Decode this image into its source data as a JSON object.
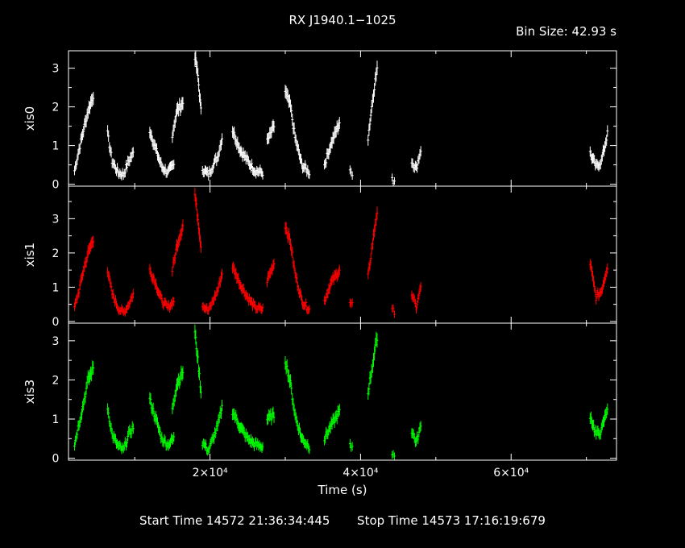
{
  "title": "RX J1940.1−1025",
  "bin_size_label": "Bin Size: 42.93 s",
  "xlabel": "Time (s)",
  "footer": {
    "start_label": "Start Time 14572 21:36:34:445",
    "stop_label": "Stop Time 14573 17:16:19:679"
  },
  "colors": {
    "xis0": "#ffffff",
    "xis1": "#ff0000",
    "xis3": "#00ff00",
    "axes": "#ffffff",
    "background": "#000000"
  },
  "chart_data": {
    "type": "scatter",
    "xlabel": "Time (s)",
    "xlim": [
      1200,
      74000
    ],
    "xticks": [
      {
        "value": 20000,
        "label": "2×10⁴"
      },
      {
        "value": 40000,
        "label": "4×10⁴"
      },
      {
        "value": 60000,
        "label": "6×10⁴"
      }
    ],
    "panels": [
      {
        "name": "xis0",
        "ylabel": "xis0",
        "ylim": [
          -0.05,
          3.45
        ],
        "yticks": [
          0,
          1,
          2,
          3
        ],
        "color": "#ffffff",
        "segments": [
          {
            "x": [
              2000,
              2600,
              3200,
              3800,
              4500
            ],
            "y": [
              0.35,
              0.9,
              1.4,
              1.9,
              2.3
            ]
          },
          {
            "x": [
              6400,
              7000,
              7800,
              8500,
              9200,
              9800
            ],
            "y": [
              1.3,
              0.6,
              0.3,
              0.25,
              0.6,
              0.8
            ]
          },
          {
            "x": [
              12000,
              12800,
              13600,
              14400,
              15200
            ],
            "y": [
              1.4,
              0.9,
              0.45,
              0.3,
              0.5
            ]
          },
          {
            "x": [
              15000,
              15600,
              16400
            ],
            "y": [
              1.3,
              1.9,
              2.1
            ]
          },
          {
            "x": [
              18000,
              18400,
              18800
            ],
            "y": [
              3.3,
              2.8,
              1.9
            ]
          },
          {
            "x": [
              19000,
              19800,
              20400,
              21000,
              21600
            ],
            "y": [
              0.4,
              0.25,
              0.5,
              0.7,
              1.2
            ]
          },
          {
            "x": [
              23000,
              24000,
              25000,
              26000,
              27000
            ],
            "y": [
              1.4,
              0.9,
              0.6,
              0.35,
              0.3
            ]
          },
          {
            "x": [
              27600,
              28500
            ],
            "y": [
              1.1,
              1.5
            ]
          },
          {
            "x": [
              30000,
              30700,
              31300,
              32200,
              33200
            ],
            "y": [
              2.4,
              2.0,
              1.2,
              0.5,
              0.3
            ]
          },
          {
            "x": [
              35200,
              36000,
              37200
            ],
            "y": [
              0.5,
              1.0,
              1.6
            ]
          },
          {
            "x": [
              38600
            ],
            "y": [
              0.3
            ]
          },
          {
            "x": [
              41000,
              41600,
              42200
            ],
            "y": [
              1.2,
              2.2,
              3.0
            ]
          },
          {
            "x": [
              44200
            ],
            "y": [
              0.1
            ]
          },
          {
            "x": [
              46800,
              47400,
              48000
            ],
            "y": [
              0.6,
              0.4,
              0.9
            ]
          },
          {
            "x": [
              70500,
              71300,
              72000,
              72800
            ],
            "y": [
              0.8,
              0.45,
              0.6,
              1.3
            ]
          }
        ]
      },
      {
        "name": "xis1",
        "ylabel": "xis1",
        "ylim": [
          -0.05,
          3.95
        ],
        "yticks": [
          0,
          1,
          2,
          3
        ],
        "color": "#ff0000",
        "segments": [
          {
            "x": [
              2000,
              2600,
              3200,
              3800,
              4500
            ],
            "y": [
              0.4,
              0.9,
              1.5,
              2.0,
              2.4
            ]
          },
          {
            "x": [
              6400,
              7000,
              7800,
              8500,
              9200,
              9800
            ],
            "y": [
              1.5,
              0.8,
              0.4,
              0.25,
              0.5,
              0.8
            ]
          },
          {
            "x": [
              12000,
              12800,
              13600,
              14400,
              15200
            ],
            "y": [
              1.5,
              1.1,
              0.6,
              0.4,
              0.6
            ]
          },
          {
            "x": [
              15000,
              15600,
              16400
            ],
            "y": [
              1.5,
              2.2,
              2.8
            ]
          },
          {
            "x": [
              18000,
              18400,
              18800
            ],
            "y": [
              3.7,
              3.0,
              2.2
            ]
          },
          {
            "x": [
              19000,
              19800,
              20400,
              21000,
              21600
            ],
            "y": [
              0.5,
              0.3,
              0.6,
              0.9,
              1.4
            ]
          },
          {
            "x": [
              23000,
              24000,
              25000,
              26000,
              27000
            ],
            "y": [
              1.6,
              1.1,
              0.7,
              0.4,
              0.35
            ]
          },
          {
            "x": [
              27600,
              28500
            ],
            "y": [
              1.2,
              1.7
            ]
          },
          {
            "x": [
              30000,
              30700,
              31300,
              32200,
              33200
            ],
            "y": [
              2.8,
              2.3,
              1.4,
              0.6,
              0.35
            ]
          },
          {
            "x": [
              35200,
              36000,
              37200
            ],
            "y": [
              0.6,
              1.1,
              1.5
            ]
          },
          {
            "x": [
              38600
            ],
            "y": [
              0.5
            ]
          },
          {
            "x": [
              41000,
              41600,
              42200
            ],
            "y": [
              1.3,
              2.3,
              3.2
            ]
          },
          {
            "x": [
              44200
            ],
            "y": [
              0.3
            ]
          },
          {
            "x": [
              46800,
              47400,
              48000
            ],
            "y": [
              0.8,
              0.4,
              1.0
            ]
          },
          {
            "x": [
              70500,
              71300,
              72000,
              72800
            ],
            "y": [
              1.7,
              0.7,
              0.9,
              1.6
            ]
          }
        ]
      },
      {
        "name": "xis3",
        "ylabel": "xis3",
        "ylim": [
          -0.05,
          3.45
        ],
        "yticks": [
          0,
          1,
          2,
          3
        ],
        "color": "#00ff00",
        "segments": [
          {
            "x": [
              2000,
              2600,
              3200,
              3800,
              4500
            ],
            "y": [
              0.35,
              0.9,
              1.4,
              2.0,
              2.3
            ]
          },
          {
            "x": [
              6400,
              7000,
              7800,
              8500,
              9200,
              9800
            ],
            "y": [
              1.3,
              0.6,
              0.3,
              0.2,
              0.6,
              0.8
            ]
          },
          {
            "x": [
              12000,
              12800,
              13600,
              14400,
              15200
            ],
            "y": [
              1.5,
              1.0,
              0.5,
              0.35,
              0.5
            ]
          },
          {
            "x": [
              15000,
              15600,
              16400
            ],
            "y": [
              1.3,
              1.9,
              2.2
            ]
          },
          {
            "x": [
              18000,
              18400,
              18800
            ],
            "y": [
              3.2,
              2.5,
              1.7
            ]
          },
          {
            "x": [
              19000,
              19800,
              20400,
              21000,
              21600
            ],
            "y": [
              0.4,
              0.2,
              0.5,
              0.8,
              1.3
            ]
          },
          {
            "x": [
              23000,
              24000,
              25000,
              26000,
              27000
            ],
            "y": [
              1.2,
              0.8,
              0.5,
              0.35,
              0.3
            ]
          },
          {
            "x": [
              27600,
              28500
            ],
            "y": [
              1.0,
              1.1
            ]
          },
          {
            "x": [
              30000,
              30700,
              31300,
              32200,
              33200
            ],
            "y": [
              2.5,
              1.9,
              1.1,
              0.5,
              0.3
            ]
          },
          {
            "x": [
              35200,
              36000,
              37200
            ],
            "y": [
              0.5,
              0.8,
              1.2
            ]
          },
          {
            "x": [
              38600
            ],
            "y": [
              0.3
            ]
          },
          {
            "x": [
              41000,
              41600,
              42200
            ],
            "y": [
              1.7,
              2.4,
              3.1
            ]
          },
          {
            "x": [
              44200
            ],
            "y": [
              0.1
            ]
          },
          {
            "x": [
              46800,
              47400,
              48000
            ],
            "y": [
              0.7,
              0.4,
              0.8
            ]
          },
          {
            "x": [
              70500,
              71300,
              72000,
              72800
            ],
            "y": [
              1.1,
              0.6,
              0.7,
              1.3
            ]
          }
        ]
      }
    ]
  }
}
